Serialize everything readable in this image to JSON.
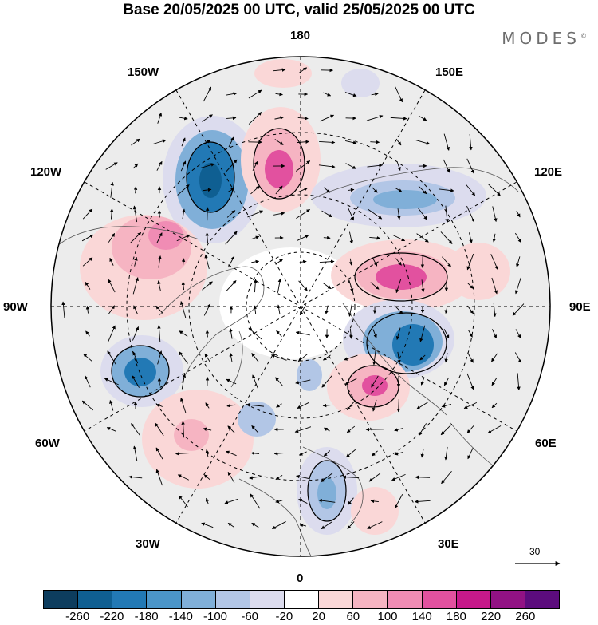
{
  "title": "Base 20/05/2025 00 UTC, valid 25/05/2025 00 UTC",
  "brand": "MODES",
  "brand_mark": "©",
  "longitude_labels": {
    "lon_180": "180",
    "lon_150e": "150E",
    "lon_120e": "120E",
    "lon_90e": "90E",
    "lon_60e": "60E",
    "lon_30e": "30E",
    "lon_0": "0",
    "lon_30w": "30W",
    "lon_60w": "60W",
    "lon_90w": "90W",
    "lon_120w": "120W",
    "lon_150w": "150W"
  },
  "wind_reference": {
    "value": "30"
  },
  "colorbar": {
    "colors": [
      "#0d3d5e",
      "#0f5f92",
      "#2279b5",
      "#4b95c8",
      "#80afd8",
      "#b2c6e6",
      "#dcdcee",
      "#ffffff",
      "#fad7d7",
      "#f6b4c2",
      "#f08cb4",
      "#e2519f",
      "#c6198a",
      "#921284",
      "#5c0c7d"
    ],
    "ticks": [
      "-260",
      "-220",
      "-180",
      "-140",
      "-100",
      "-60",
      "-20",
      "20",
      "60",
      "100",
      "140",
      "180",
      "220",
      "260"
    ]
  }
}
